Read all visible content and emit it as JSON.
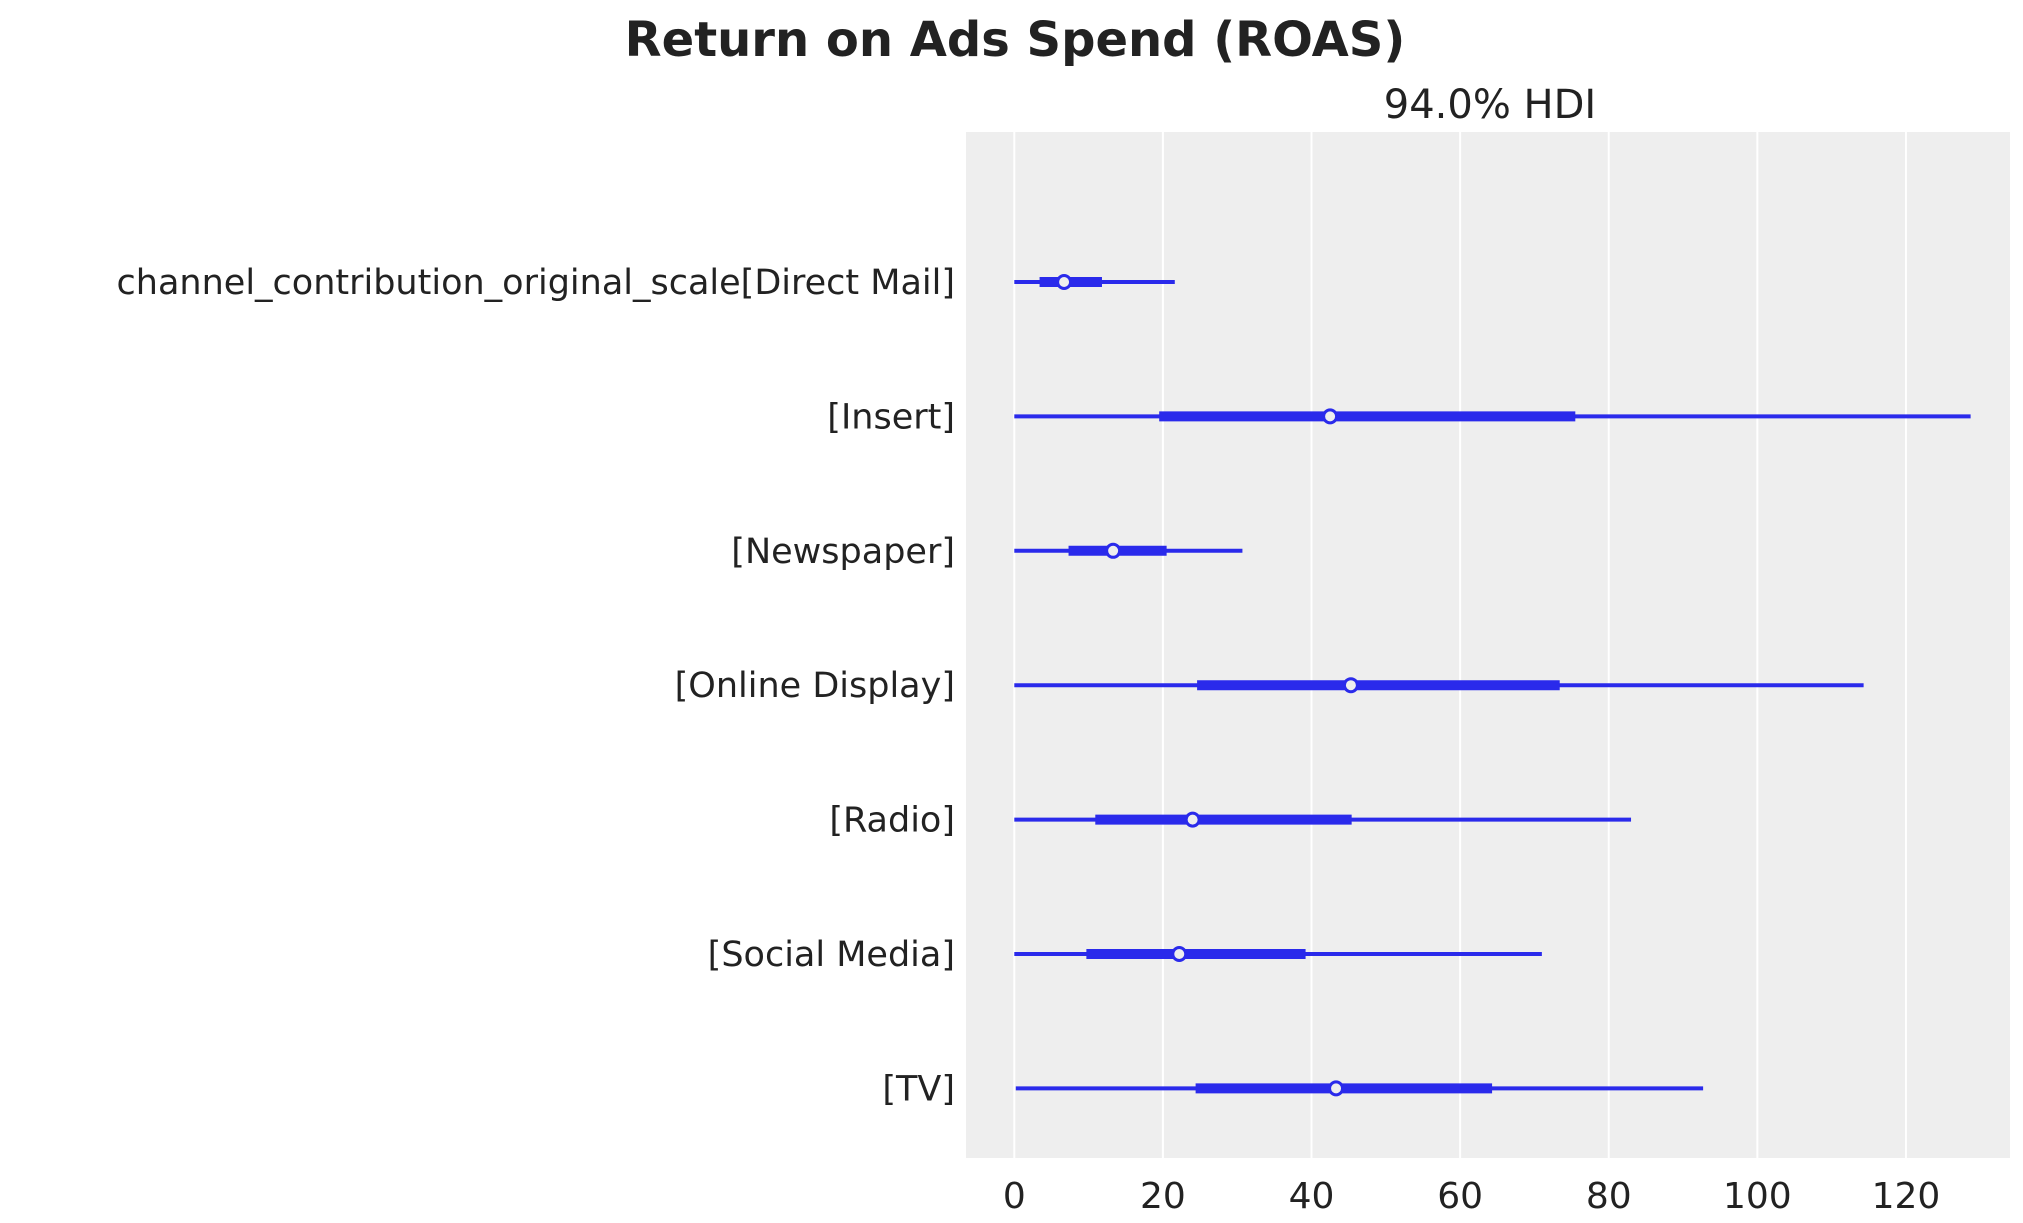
{
  "chart_data": {
    "type": "forest",
    "title": "Return on Ads Spend (ROAS)",
    "subtitle": "94.0% HDI",
    "xlim": [
      -6.5,
      134
    ],
    "xticks": [
      0,
      20,
      40,
      60,
      80,
      100,
      120
    ],
    "grid": true,
    "color": "#2a2aeb",
    "background": "#eeeeee",
    "categories": [
      "channel_contribution_original_scale[Direct Mail]",
      "[Insert]",
      "[Newspaper]",
      "[Online Display]",
      "[Radio]",
      "[Social Media]",
      "[TV]"
    ],
    "series": [
      {
        "hdi_low": 0.0,
        "hdi_high": 21.6,
        "iqr_low": 3.4,
        "iqr_high": 11.8,
        "median": 6.7
      },
      {
        "hdi_low": 0.0,
        "hdi_high": 128.7,
        "iqr_low": 19.5,
        "iqr_high": 75.5,
        "median": 42.5
      },
      {
        "hdi_low": 0.0,
        "hdi_high": 30.7,
        "iqr_low": 7.3,
        "iqr_high": 20.5,
        "median": 13.3
      },
      {
        "hdi_low": 0.0,
        "hdi_high": 114.3,
        "iqr_low": 24.6,
        "iqr_high": 73.4,
        "median": 45.3
      },
      {
        "hdi_low": 0.0,
        "hdi_high": 83.0,
        "iqr_low": 10.9,
        "iqr_high": 45.4,
        "median": 24.0
      },
      {
        "hdi_low": 0.0,
        "hdi_high": 71.0,
        "iqr_low": 9.7,
        "iqr_high": 39.2,
        "median": 22.2
      },
      {
        "hdi_low": 0.2,
        "hdi_high": 92.7,
        "iqr_low": 24.4,
        "iqr_high": 64.3,
        "median": 43.3
      }
    ]
  }
}
